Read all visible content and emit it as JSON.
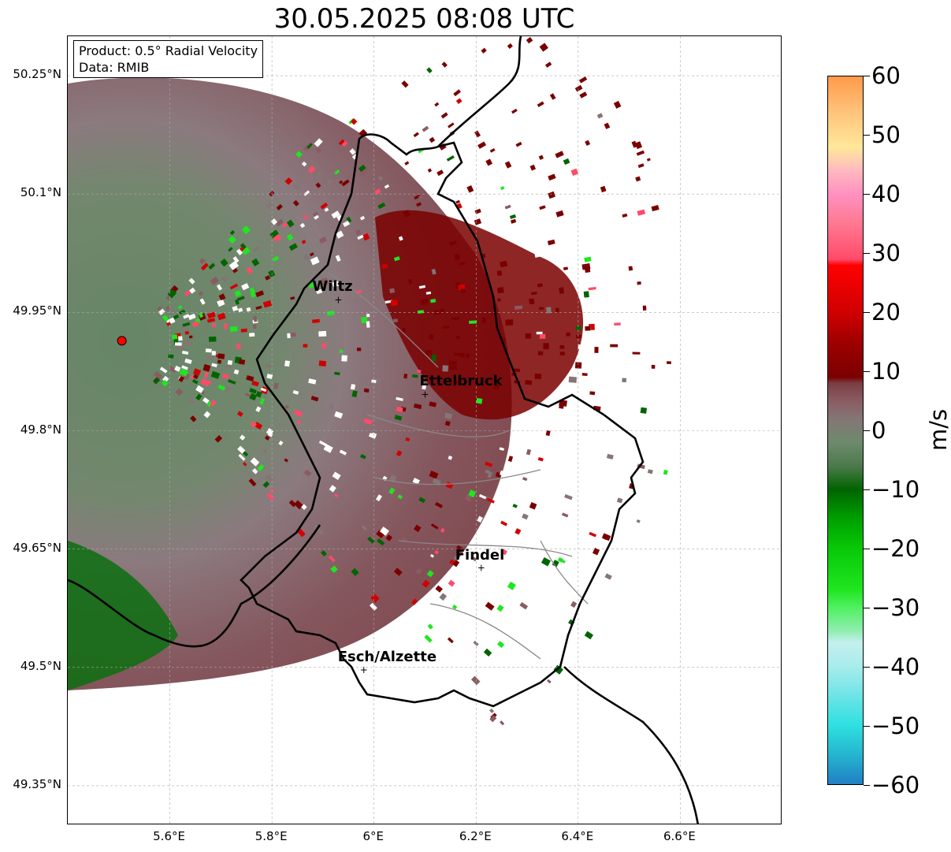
{
  "title": "30.05.2025 08:08 UTC",
  "info_box": {
    "product": "Product: 0.5° Radial Velocity",
    "data_source": "Data: RMIB"
  },
  "lat_labels": [
    "50.25°N",
    "50.1°N",
    "49.95°N",
    "49.8°N",
    "49.65°N",
    "49.5°N",
    "49.35°N"
  ],
  "lat_values": [
    50.25,
    50.1,
    49.95,
    49.8,
    49.65,
    49.5,
    49.35
  ],
  "lon_labels": [
    "5.6°E",
    "5.8°E",
    "6°E",
    "6.2°E",
    "6.4°E",
    "6.6°E"
  ],
  "lon_values": [
    5.6,
    5.8,
    6.0,
    6.2,
    6.4,
    6.6
  ],
  "extent": {
    "lon_min": 5.4,
    "lon_max": 6.8,
    "lat_min": 49.3,
    "lat_max": 50.3
  },
  "radar_site": {
    "lon": 5.506,
    "lat": 49.914
  },
  "cities": [
    {
      "name": "Wiltz",
      "lon": 5.93,
      "lat": 49.966
    },
    {
      "name": "Ettelbruck",
      "lon": 6.1,
      "lat": 49.846
    },
    {
      "name": "Findel",
      "lon": 6.21,
      "lat": 49.626
    },
    {
      "name": "Esch/Alzette",
      "lon": 5.98,
      "lat": 49.497
    }
  ],
  "colorbar": {
    "unit": "m/s",
    "min": -60,
    "max": 60,
    "tick_values": [
      60,
      50,
      40,
      30,
      20,
      10,
      0,
      -10,
      -20,
      -30,
      -40,
      -50,
      -60
    ],
    "tick_labels": [
      "60",
      "50",
      "40",
      "30",
      "20",
      "10",
      "0",
      "−10",
      "−20",
      "−30",
      "−40",
      "−50",
      "−60"
    ],
    "color_stops": [
      {
        "v": -60,
        "c": "#1f7fc4"
      },
      {
        "v": -55,
        "c": "#25b5cf"
      },
      {
        "v": -50,
        "c": "#2ee0e0"
      },
      {
        "v": -45,
        "c": "#6ee4e6"
      },
      {
        "v": -40,
        "c": "#a8ecec"
      },
      {
        "v": -36,
        "c": "#c4f0ee"
      },
      {
        "v": -34,
        "c": "#90eeb0"
      },
      {
        "v": -30,
        "c": "#4ff060"
      },
      {
        "v": -27,
        "c": "#1fe61f"
      },
      {
        "v": -20,
        "c": "#08c808"
      },
      {
        "v": -15,
        "c": "#00a000"
      },
      {
        "v": -10,
        "c": "#006400"
      },
      {
        "v": -6,
        "c": "#4c7a4c"
      },
      {
        "v": -2,
        "c": "#6e8a6e"
      },
      {
        "v": 2,
        "c": "#857575"
      },
      {
        "v": 5,
        "c": "#8a5c62"
      },
      {
        "v": 8,
        "c": "#7a3e44"
      },
      {
        "v": 9,
        "c": "#7a0000"
      },
      {
        "v": 15,
        "c": "#a00000"
      },
      {
        "v": 20,
        "c": "#d00000"
      },
      {
        "v": 28,
        "c": "#ff0000"
      },
      {
        "v": 29,
        "c": "#ff4a6a"
      },
      {
        "v": 35,
        "c": "#ff7890"
      },
      {
        "v": 40,
        "c": "#ff90c0"
      },
      {
        "v": 44,
        "c": "#ffb8c0"
      },
      {
        "v": 48,
        "c": "#ffe89a"
      },
      {
        "v": 54,
        "c": "#ffc37a"
      },
      {
        "v": 60,
        "c": "#ff9a4a"
      }
    ]
  }
}
